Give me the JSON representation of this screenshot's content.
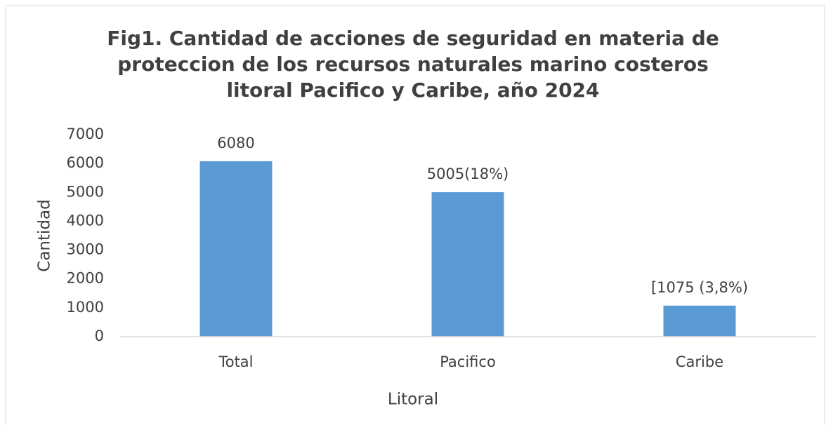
{
  "chart_data": {
    "type": "bar",
    "title": "Fig1. Cantidad de acciones de seguridad en materia de proteccion de los recursos naturales marino costeros litoral Pacifico y Caribe, año 2024",
    "x_label": "Litoral",
    "y_label": "Cantidad",
    "categories": [
      "Total",
      "Pacifico",
      "Caribe"
    ],
    "values": [
      6080,
      5005,
      1075
    ],
    "value_labels": [
      "6080",
      "5005(18%)",
      "[1075 (3,8%)"
    ],
    "color": "#5b9bd5",
    "ylim": [
      0,
      7000
    ],
    "yticks": [
      0,
      1000,
      2000,
      3000,
      4000,
      5000,
      6000,
      7000
    ],
    "grid": false
  }
}
